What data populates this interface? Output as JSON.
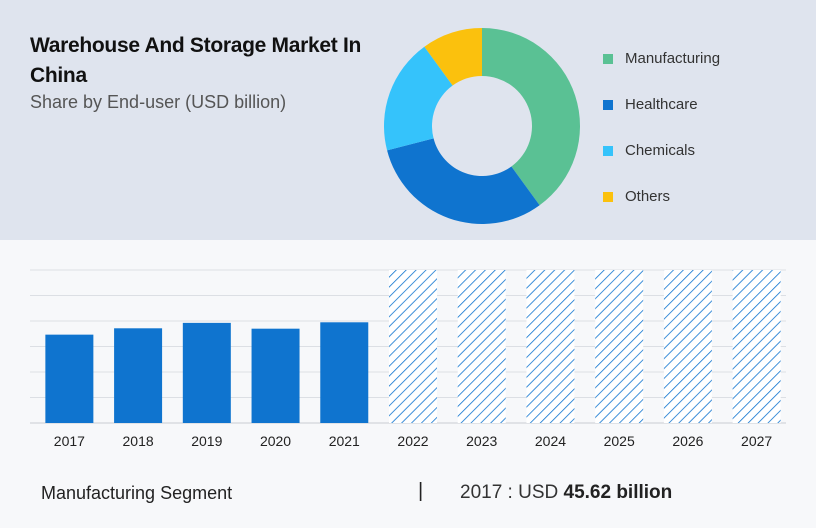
{
  "header": {
    "title": "Warehouse And Storage Market In China",
    "subtitle": "Share by End-user (USD billion)"
  },
  "chart_data": [
    {
      "type": "pie",
      "donut": true,
      "categories": [
        "Manufacturing",
        "Healthcare",
        "Chemicals",
        "Others"
      ],
      "values": [
        40,
        31,
        19,
        10
      ],
      "colors": [
        "#5ac194",
        "#0f74cf",
        "#35c3fb",
        "#fbc10d"
      ],
      "legend": "right"
    },
    {
      "type": "bar",
      "categories": [
        "2017",
        "2018",
        "2019",
        "2020",
        "2021",
        "2022",
        "2023",
        "2024",
        "2025",
        "2026",
        "2027"
      ],
      "values": [
        45.62,
        48.9,
        51.7,
        48.7,
        52.0,
        null,
        null,
        null,
        null,
        null,
        null
      ],
      "forecast": [
        false,
        false,
        false,
        false,
        false,
        true,
        true,
        true,
        true,
        true,
        true
      ],
      "forecast_value": 79,
      "ylim": [
        0,
        79
      ],
      "grid": true,
      "color": "#0f74cf",
      "forecast_color": "#0f74cf"
    }
  ],
  "footer": {
    "segment_label": "Manufacturing Segment",
    "separator": "|",
    "year_prefix": "2017 : USD ",
    "value_text": "45.62 billion"
  }
}
